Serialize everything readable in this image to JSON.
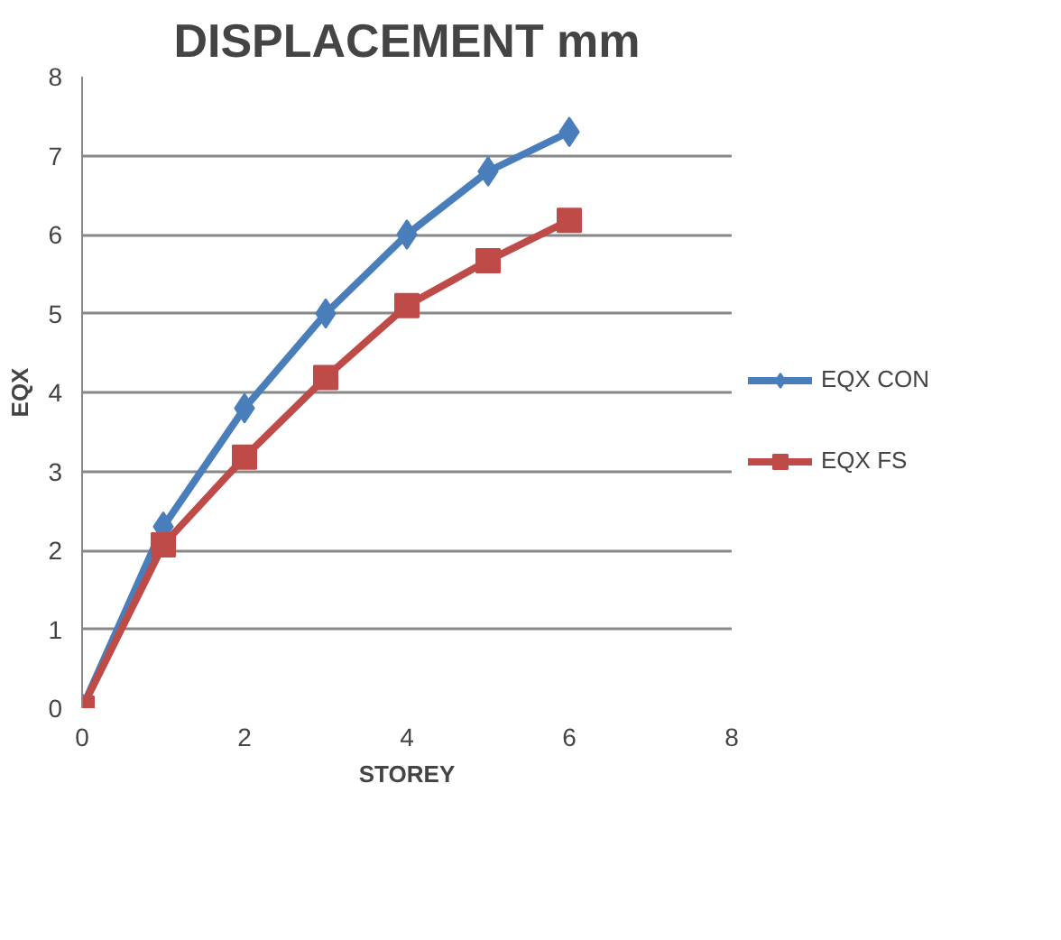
{
  "chart_data": {
    "type": "line",
    "title": "DISPLACEMENT mm",
    "xlabel": "STOREY",
    "ylabel": "EQX",
    "x": [
      0,
      1,
      2,
      3,
      4,
      5,
      6
    ],
    "series": [
      {
        "name": "EQX CON",
        "color": "#4a7ebb",
        "marker": "diamond",
        "values": [
          0,
          2.3,
          3.8,
          5.0,
          6.0,
          6.8,
          7.3
        ]
      },
      {
        "name": "EQX FS",
        "color": "#be4b48",
        "marker": "square",
        "values": [
          0,
          2.07,
          3.18,
          4.19,
          5.1,
          5.67,
          6.18
        ]
      }
    ],
    "xlim": [
      0,
      8
    ],
    "xticks": [
      0,
      2,
      4,
      6,
      8
    ],
    "ylim": [
      0,
      8
    ],
    "yticks": [
      0,
      1,
      2,
      3,
      4,
      5,
      6,
      7,
      8
    ],
    "grid": "y",
    "legend": "right",
    "line_style": "solid"
  }
}
